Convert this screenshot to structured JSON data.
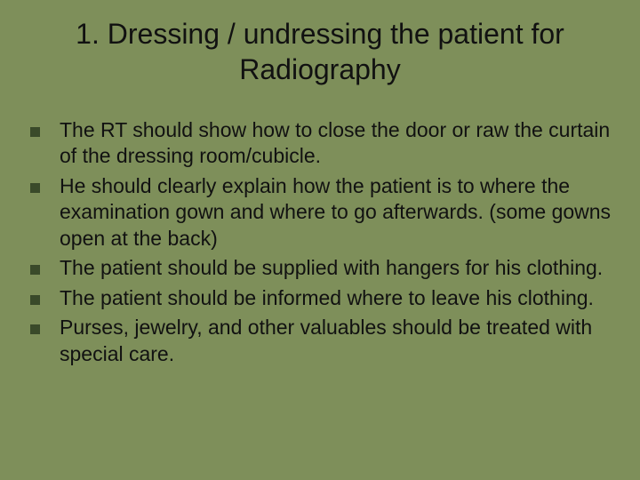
{
  "slide": {
    "background_color": "#7e8f5a",
    "text_color": "#111111",
    "bullet_marker_color": "#3a4a2a",
    "title_fontsize": 32,
    "body_fontsize": 23,
    "font_family": "Verdana",
    "title": "1. Dressing / undressing the patient for Radiography",
    "bullets": [
      "The RT should show how to close the door or raw the curtain of the dressing room/cubicle.",
      "He should clearly explain how the patient is to where the examination gown and where to go afterwards. (some gowns open at the back)",
      "The patient should be supplied with hangers for his clothing.",
      "The patient should be informed where to leave his clothing.",
      "Purses, jewelry, and other valuables should be treated with special care."
    ]
  }
}
